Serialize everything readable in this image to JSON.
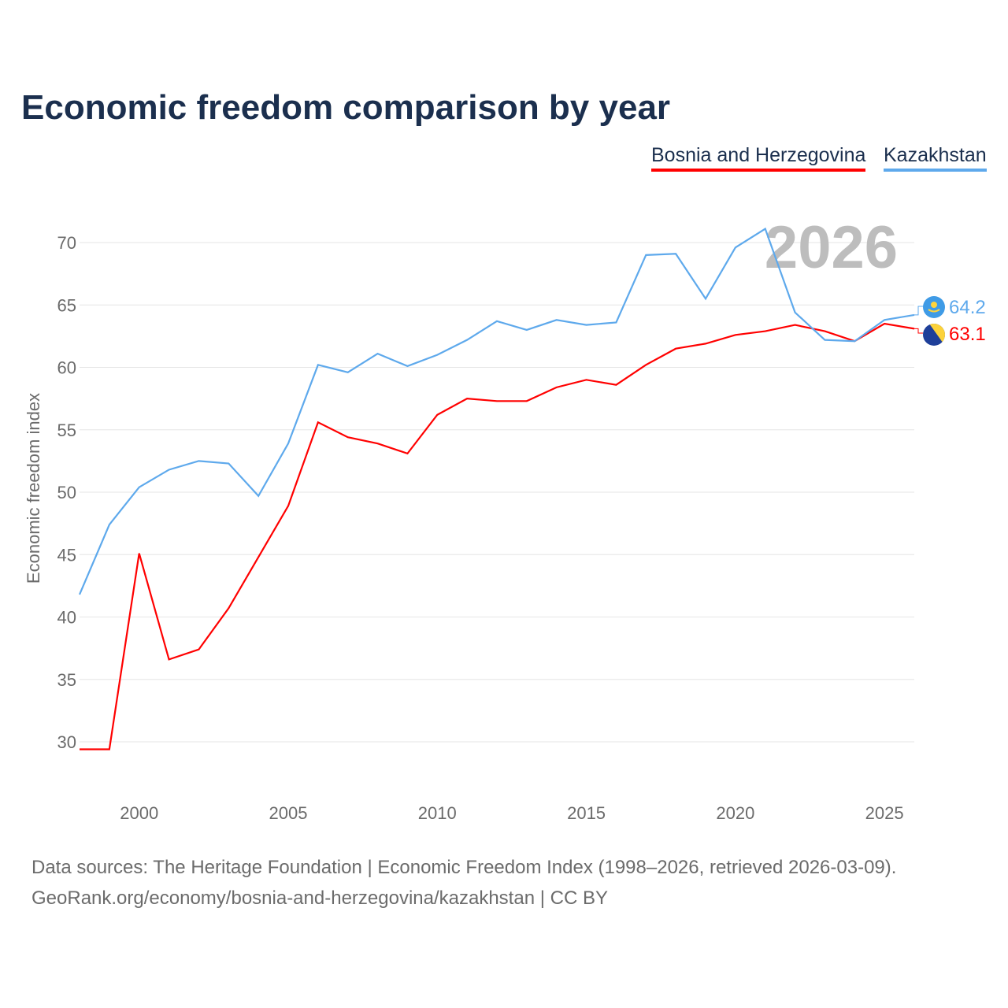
{
  "chart_data": {
    "type": "line",
    "title": "Economic freedom comparison by year",
    "xlabel": "",
    "ylabel": "Economic freedom index",
    "xlim": [
      1998,
      2026
    ],
    "ylim": [
      30,
      70
    ],
    "x_ticks": [
      2000,
      2005,
      2010,
      2015,
      2020,
      2025
    ],
    "y_ticks": [
      30,
      35,
      40,
      45,
      50,
      55,
      60,
      65,
      70
    ],
    "grid": true,
    "legend_position": "top-right",
    "year_watermark": "2026",
    "x": [
      1998,
      1999,
      2000,
      2001,
      2002,
      2003,
      2004,
      2005,
      2006,
      2007,
      2008,
      2009,
      2010,
      2011,
      2012,
      2013,
      2014,
      2015,
      2016,
      2017,
      2018,
      2019,
      2020,
      2021,
      2022,
      2023,
      2024,
      2025,
      2026
    ],
    "series": [
      {
        "name": "Bosnia and Herzegovina",
        "color": "#ff0000",
        "end_label": "63.1",
        "values": [
          29.4,
          29.4,
          45.1,
          36.6,
          37.4,
          40.7,
          44.8,
          48.9,
          55.6,
          54.4,
          53.9,
          53.1,
          56.2,
          57.5,
          57.3,
          57.3,
          58.4,
          59.0,
          58.6,
          60.2,
          61.5,
          61.9,
          62.6,
          62.9,
          63.4,
          62.9,
          62.1,
          63.5,
          63.1
        ]
      },
      {
        "name": "Kazakhstan",
        "color": "#5ea9ec",
        "end_label": "64.2",
        "values": [
          41.8,
          47.4,
          50.4,
          51.8,
          52.5,
          52.3,
          49.7,
          53.9,
          60.2,
          59.6,
          61.1,
          60.1,
          61.0,
          62.2,
          63.7,
          63.0,
          63.8,
          63.4,
          63.6,
          69.0,
          69.1,
          65.5,
          69.6,
          71.1,
          64.4,
          62.2,
          62.1,
          63.8,
          64.2
        ]
      }
    ]
  },
  "footer": {
    "line1": "Data sources: The Heritage Foundation | Economic Freedom Index (1998–2026, retrieved 2026-03-09).",
    "line2": "GeoRank.org/economy/bosnia-and-herzegovina/kazakhstan | CC BY"
  }
}
